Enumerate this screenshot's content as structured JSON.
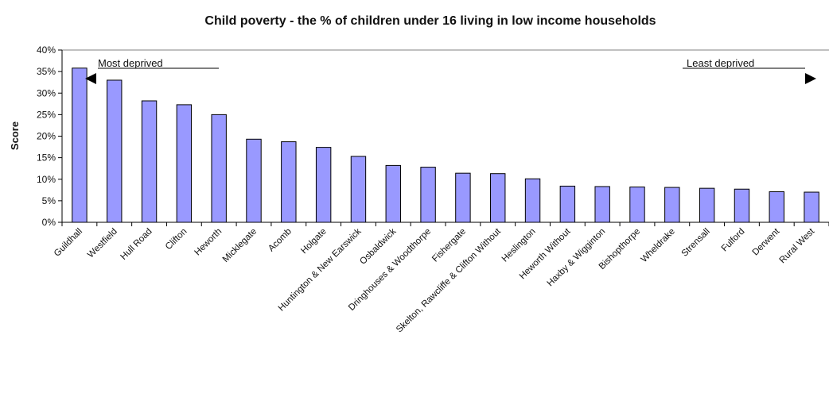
{
  "chart_data": {
    "type": "bar",
    "title": "Child poverty - the % of children under 16 living in low income households",
    "ylabel": "Score",
    "xlabel": "",
    "ylim": [
      0,
      40
    ],
    "yticks": [
      "0%",
      "5%",
      "10%",
      "15%",
      "20%",
      "25%",
      "30%",
      "35%",
      "40%"
    ],
    "grid": false,
    "bar_color": "#9999ff",
    "categories": [
      "Guildhall",
      "Westfield",
      "Hull Road",
      "Clifton",
      "Heworth",
      "Micklegate",
      "Acomb",
      "Holgate",
      "Huntington & New Earswick",
      "Osbaldwick",
      "Dringhouses & Woodthorpe",
      "Fishergate",
      "Skelton, Rawcliffe & Clifton Without",
      "Heslington",
      "Heworth Without",
      "Haxby & Wigginton",
      "Bishopthorpe",
      "Wheldrake",
      "Strensall",
      "Fulford",
      "Derwent",
      "Rural West"
    ],
    "values": [
      35.8,
      33.0,
      28.2,
      27.3,
      25.0,
      19.3,
      18.7,
      17.4,
      15.3,
      13.2,
      12.8,
      11.4,
      11.3,
      10.1,
      8.4,
      8.3,
      8.2,
      8.1,
      7.9,
      7.7,
      7.1,
      7.0
    ],
    "annotations": {
      "left": "Most deprived",
      "right": "Least deprived"
    }
  }
}
